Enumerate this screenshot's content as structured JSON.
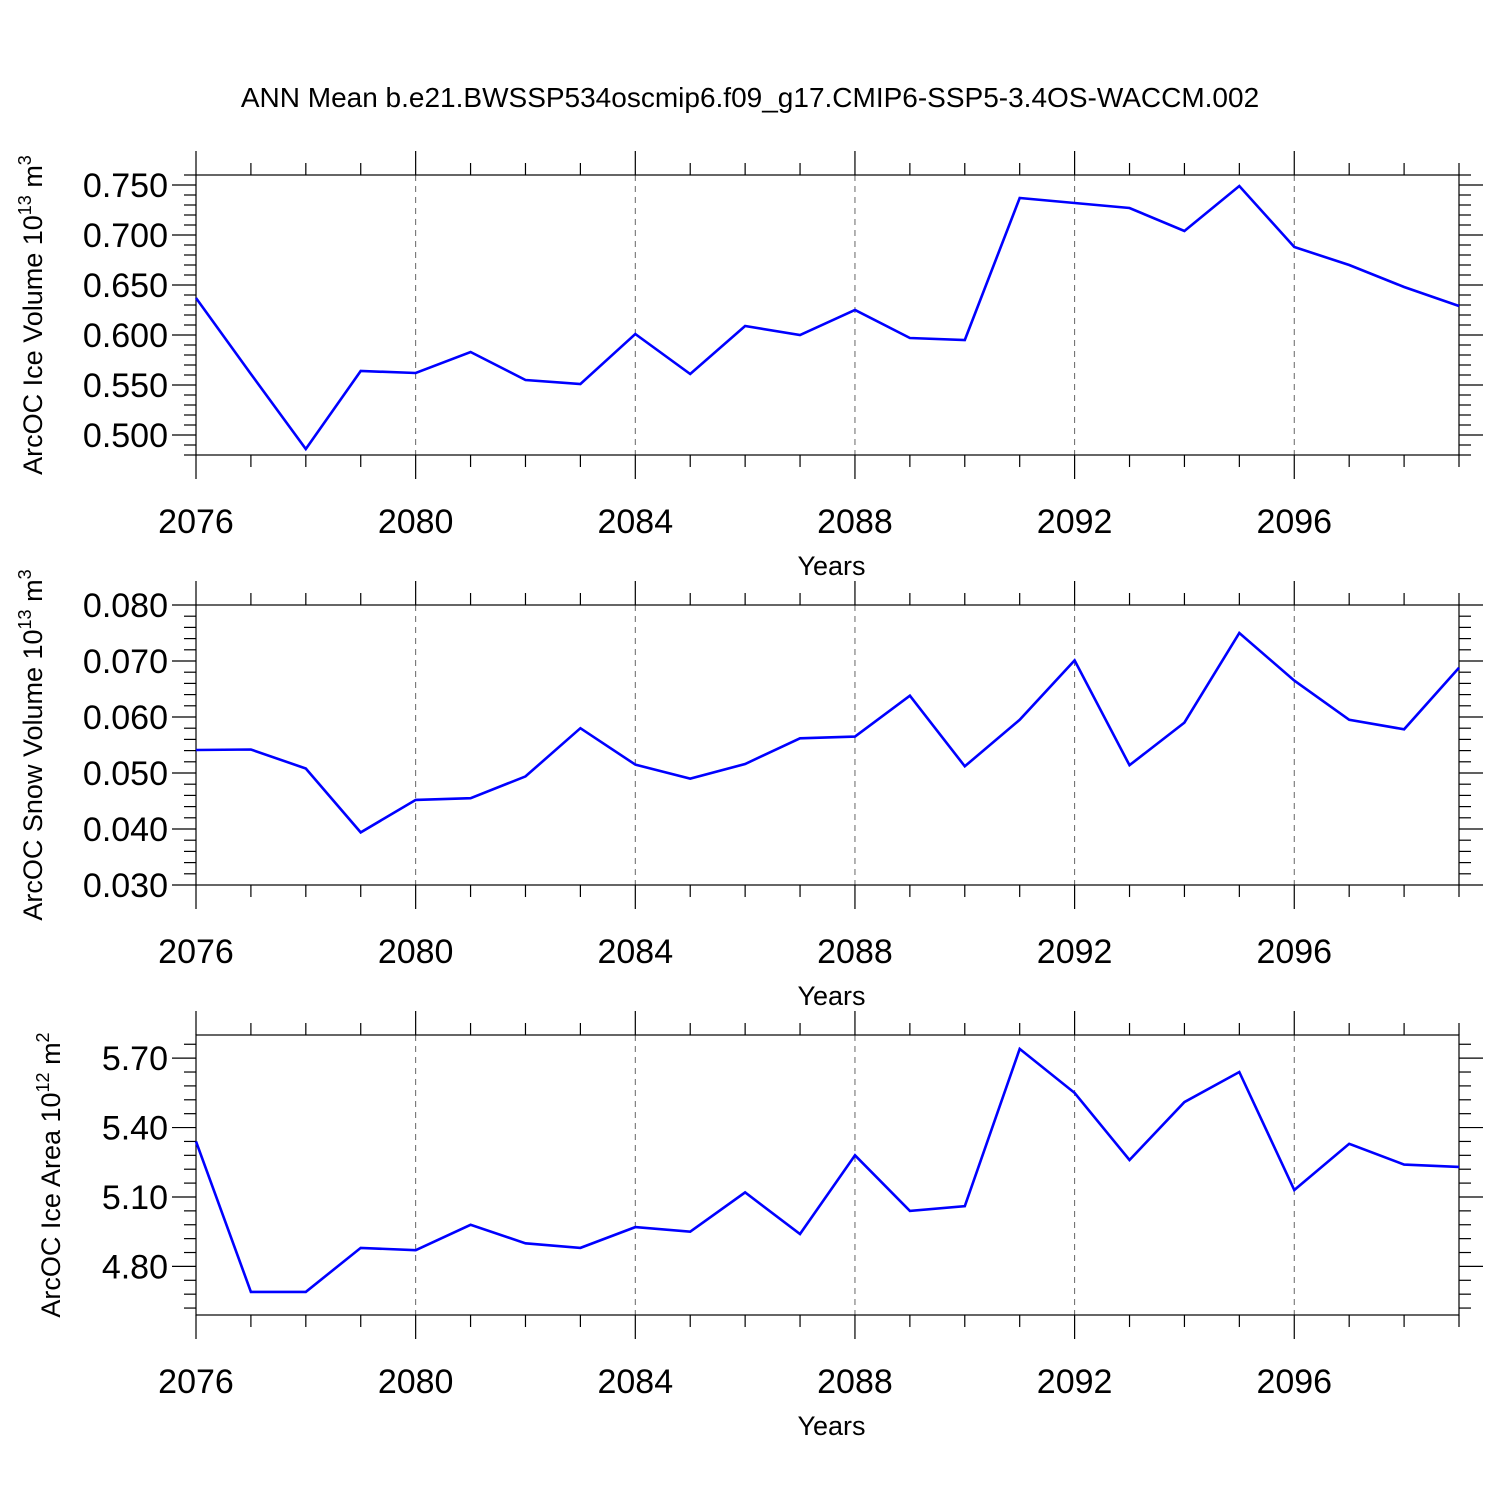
{
  "title": "ANN Mean b.e21.BWSSP534oscmip6.f09_g17.CMIP6-SSP5-3.4OS-WACCM.002",
  "line_color": "#0000ff",
  "chart_data": [
    {
      "type": "line",
      "xlabel": "Years",
      "ylabel_main": "ArcOC Ice Volume 10",
      "ylabel_sup": "13",
      "ylabel_unit": "m",
      "ylabel_unit_sup": "3",
      "xlim": [
        2076,
        2099
      ],
      "ylim": [
        0.48,
        0.76
      ],
      "xticks": [
        "2076",
        "2080",
        "2084",
        "2088",
        "2092",
        "2096"
      ],
      "yticks": [
        "0.750",
        "0.700",
        "0.650",
        "0.600",
        "0.550",
        "0.500"
      ],
      "x": [
        2076,
        2077,
        2078,
        2079,
        2080,
        2081,
        2082,
        2083,
        2084,
        2085,
        2086,
        2087,
        2088,
        2089,
        2090,
        2091,
        2092,
        2093,
        2094,
        2095,
        2096,
        2097,
        2098,
        2099
      ],
      "values": [
        0.637,
        0.561,
        0.486,
        0.564,
        0.562,
        0.583,
        0.555,
        0.551,
        0.601,
        0.561,
        0.609,
        0.6,
        0.625,
        0.597,
        0.595,
        0.737,
        0.732,
        0.727,
        0.704,
        0.749,
        0.688,
        0.67,
        0.648,
        0.629
      ]
    },
    {
      "type": "line",
      "xlabel": "Years",
      "ylabel_main": "ArcOC Snow Volume 10",
      "ylabel_sup": "13",
      "ylabel_unit": "m",
      "ylabel_unit_sup": "3",
      "xlim": [
        2076,
        2099
      ],
      "ylim": [
        0.03,
        0.08
      ],
      "xticks": [
        "2076",
        "2080",
        "2084",
        "2088",
        "2092",
        "2096"
      ],
      "yticks": [
        "0.080",
        "0.070",
        "0.060",
        "0.050",
        "0.040",
        "0.030"
      ],
      "x": [
        2076,
        2077,
        2078,
        2079,
        2080,
        2081,
        2082,
        2083,
        2084,
        2085,
        2086,
        2087,
        2088,
        2089,
        2090,
        2091,
        2092,
        2093,
        2094,
        2095,
        2096,
        2097,
        2098,
        2099
      ],
      "values": [
        0.0541,
        0.0542,
        0.0508,
        0.0394,
        0.0452,
        0.0455,
        0.0494,
        0.058,
        0.0515,
        0.049,
        0.0516,
        0.0562,
        0.0565,
        0.0638,
        0.0512,
        0.0595,
        0.0701,
        0.0514,
        0.059,
        0.075,
        0.0665,
        0.0595,
        0.0578,
        0.0688
      ]
    },
    {
      "type": "line",
      "xlabel": "Years",
      "ylabel_main": "ArcOC Ice Area 10",
      "ylabel_sup": "12",
      "ylabel_unit": "m",
      "ylabel_unit_sup": "2",
      "xlim": [
        2076,
        2099
      ],
      "ylim": [
        4.59,
        5.8
      ],
      "xticks": [
        "2076",
        "2080",
        "2084",
        "2088",
        "2092",
        "2096"
      ],
      "yticks": [
        "5.70",
        "5.40",
        "5.10",
        "4.80"
      ],
      "x": [
        2076,
        2077,
        2078,
        2079,
        2080,
        2081,
        2082,
        2083,
        2084,
        2085,
        2086,
        2087,
        2088,
        2089,
        2090,
        2091,
        2092,
        2093,
        2094,
        2095,
        2096,
        2097,
        2098,
        2099
      ],
      "values": [
        5.34,
        4.69,
        4.69,
        4.88,
        4.87,
        4.98,
        4.9,
        4.88,
        4.97,
        4.95,
        5.12,
        4.94,
        5.28,
        5.04,
        5.06,
        5.74,
        5.55,
        5.26,
        5.51,
        5.64,
        5.13,
        5.33,
        5.24,
        5.23
      ]
    }
  ]
}
